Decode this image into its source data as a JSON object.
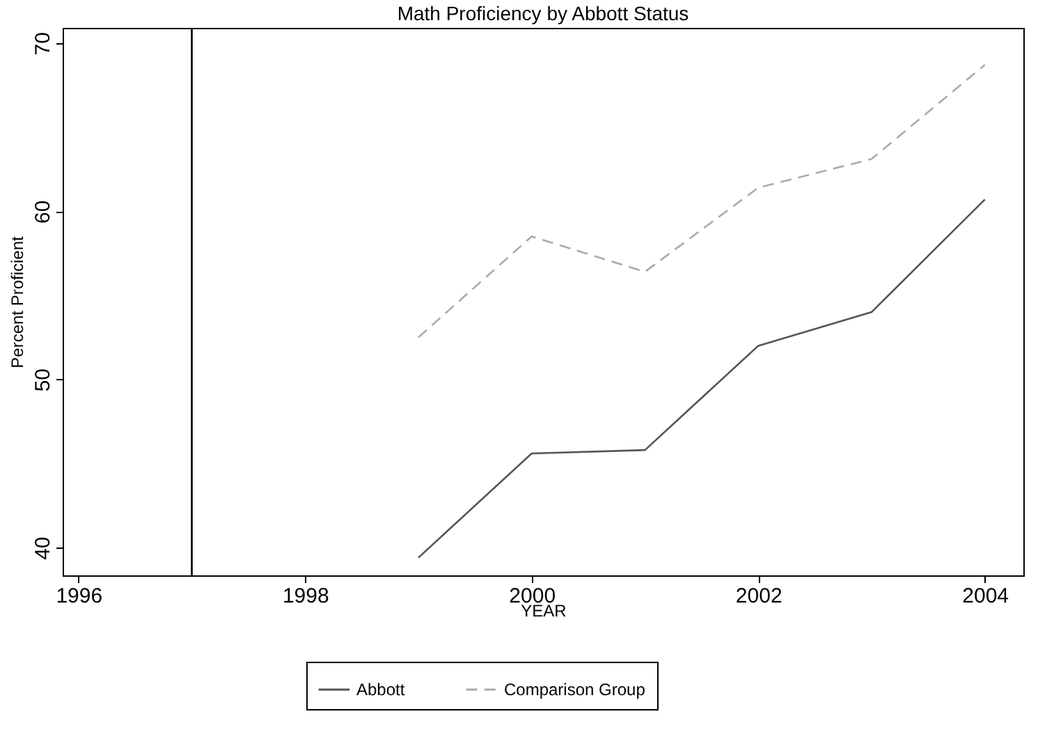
{
  "chart_data": {
    "type": "line",
    "title": "Math Proficiency by Abbott Status",
    "xlabel": "YEAR",
    "ylabel": "Percent Proficient",
    "x": [
      1999,
      2000,
      2001,
      2002,
      2003,
      2004
    ],
    "series": [
      {
        "name": "Abbott",
        "color": "#555555",
        "line_style": "solid",
        "values": [
          39.4,
          45.6,
          45.8,
          52.0,
          54.0,
          60.7
        ]
      },
      {
        "name": "Comparison Group",
        "color": "#aaaaaa",
        "line_style": "dashed",
        "values": [
          52.5,
          58.5,
          56.4,
          61.4,
          63.1,
          68.7
        ]
      }
    ],
    "xlim": [
      1995.86,
      2004.34
    ],
    "xticks": [
      1996,
      1998,
      2000,
      2002,
      2004
    ],
    "ylim": [
      38.35,
      70.9
    ],
    "yticks": [
      40,
      50,
      60,
      70
    ],
    "ref_lines": [
      {
        "axis": "x",
        "value": 1997,
        "color": "#000000"
      }
    ],
    "grid": false,
    "legend": "bottom",
    "marker": "none"
  }
}
